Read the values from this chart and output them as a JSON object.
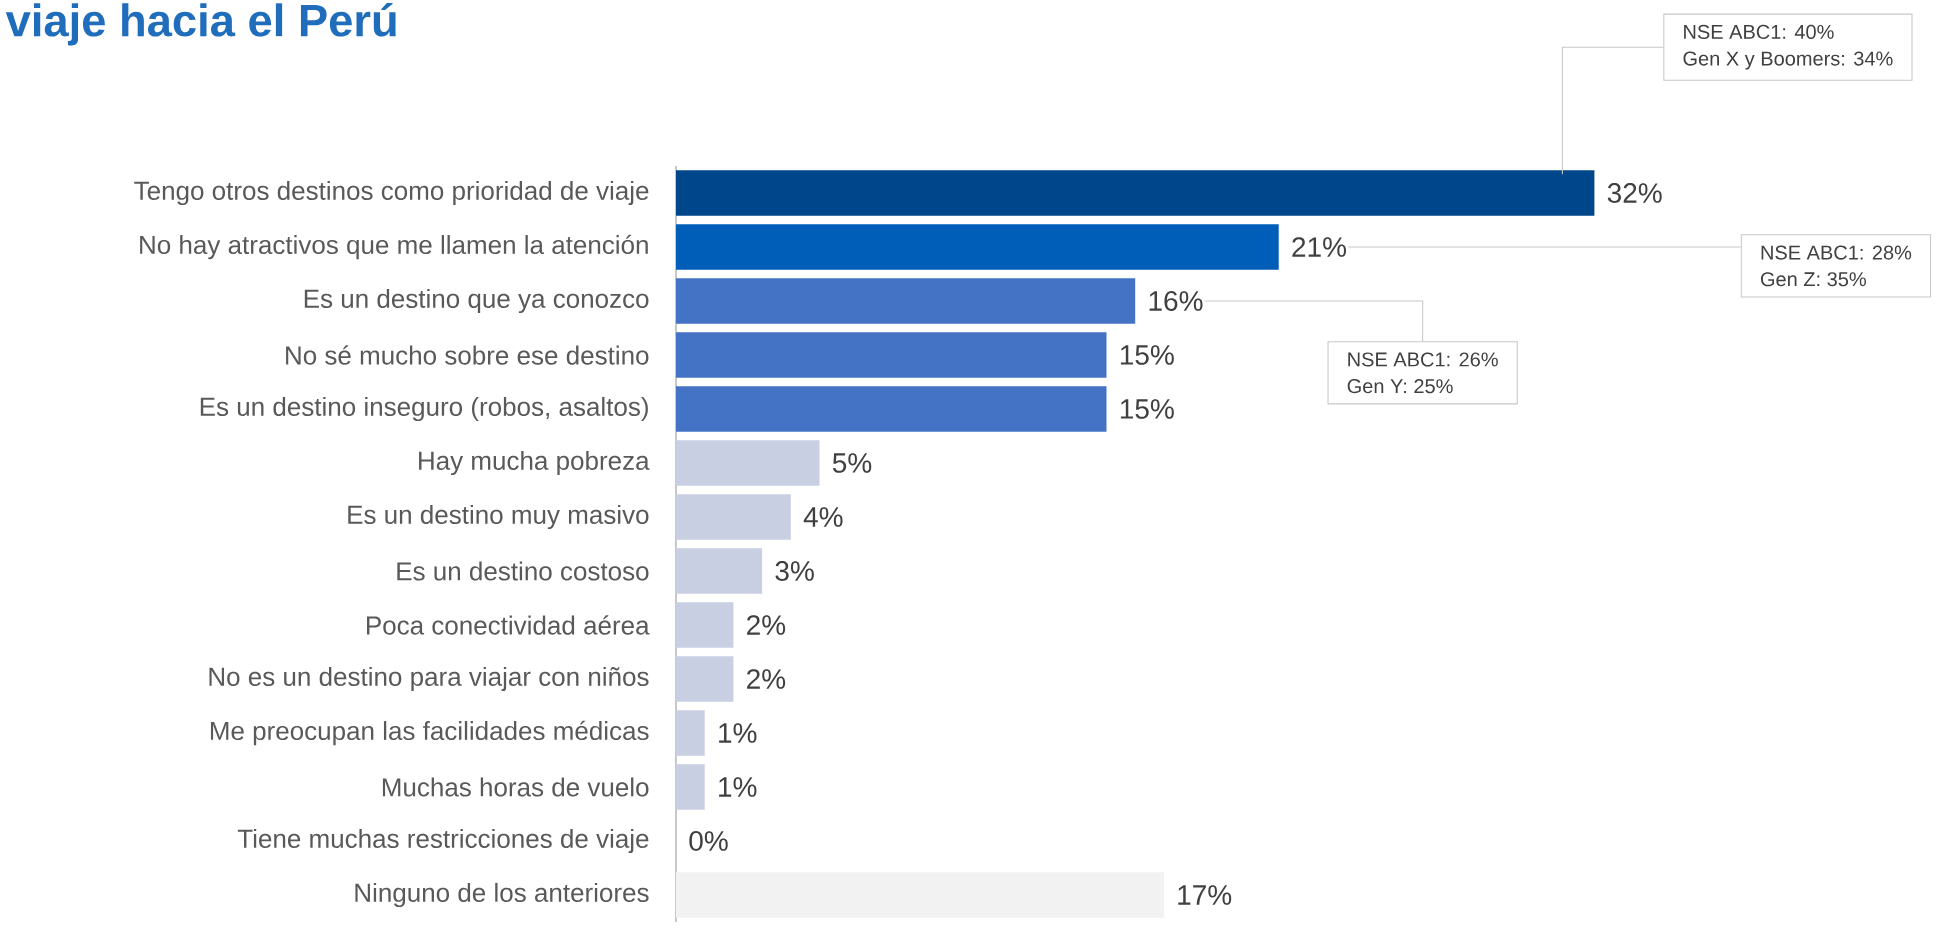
{
  "chart_data": {
    "type": "bar",
    "orientation": "horizontal",
    "title": "viaje hacia el Perú",
    "categories": [
      "Tengo otros destinos como prioridad de viaje",
      "No hay atractivos que me llamen la atención",
      "Es un destino que ya conozco",
      "No sé mucho sobre ese destino",
      "Es un destino inseguro (robos, asaltos)",
      "Hay mucha pobreza",
      "Es un destino muy masivo",
      "Es un destino costoso",
      "Poca conectividad aérea",
      "No es un destino para viajar con niños",
      "Me preocupan las facilidades médicas",
      "Muchas horas de vuelo",
      "Tiene muchas restricciones de viaje",
      "Ninguno de los anteriores"
    ],
    "values": [
      32,
      21,
      16,
      15,
      15,
      5,
      4,
      3,
      2,
      2,
      1,
      1,
      0,
      17
    ],
    "value_labels": [
      "32%",
      "21%",
      "16%",
      "15%",
      "15%",
      "5%",
      "4%",
      "3%",
      "2%",
      "2%",
      "1%",
      "1%",
      "0%",
      "17%"
    ],
    "colors": [
      "#00468b",
      "#005eb8",
      "#4472c4",
      "#4472c4",
      "#4472c4",
      "#c9cfe3",
      "#c9cfe3",
      "#c9cfe3",
      "#c9cfe3",
      "#c9cfe3",
      "#c9cfe3",
      "#c9cfe3",
      "#c9cfe3",
      "#f2f2f2"
    ],
    "annotations": [
      "NSE ABC1: 40%",
      "Gen X y Boomers: 34%",
      "NSE ABC1: 28%",
      "Gen Z: 35%",
      "NSE ABC1: 26%",
      "Gen Y: 25%"
    ]
  }
}
